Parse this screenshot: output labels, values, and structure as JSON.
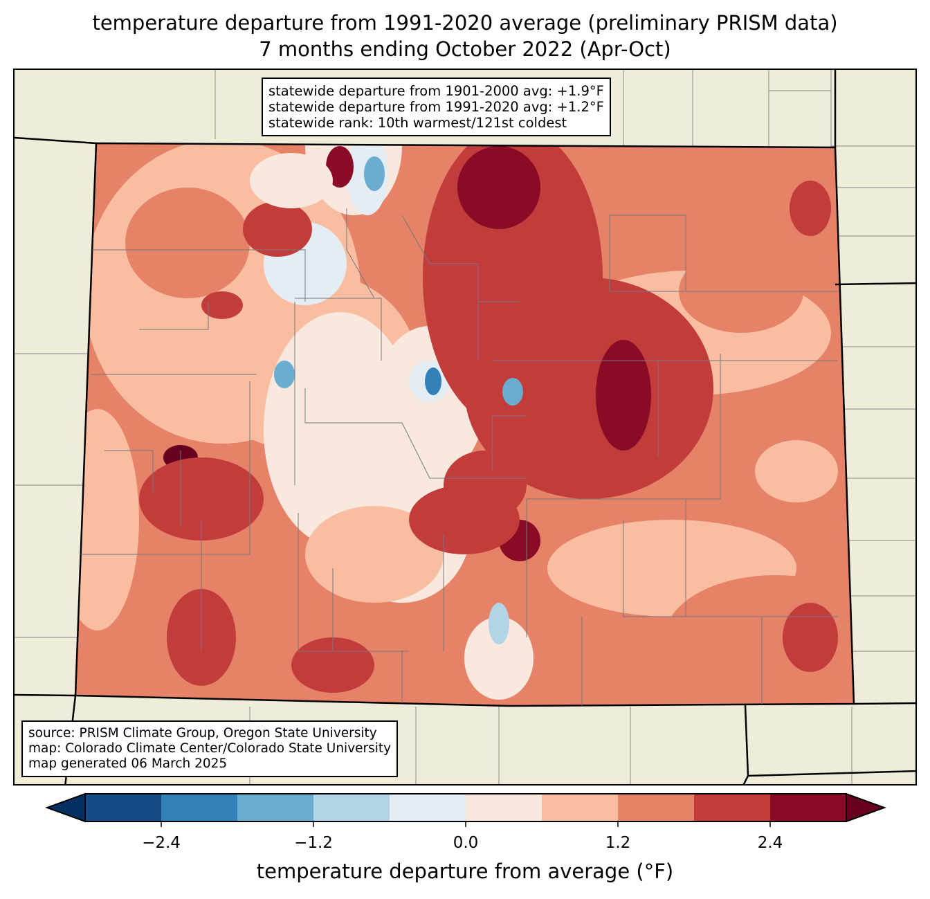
{
  "title_line1": "temperature departure from 1991-2020 average (preliminary PRISM data)",
  "title_line2": "7 months ending October 2022 (Apr-Oct)",
  "stats_box": [
    "statewide departure from 1901-2000 avg: +1.9°F",
    "statewide departure from 1991-2020 avg: +1.2°F",
    "statewide rank: 10th warmest/121st coldest"
  ],
  "source_box": [
    "source: PRISM Climate Group, Oregon State University",
    "map: Colorado Climate Center/Colorado State University",
    "map generated 06 March 2025"
  ],
  "colorbar": {
    "label": "temperature departure from average (°F)",
    "bounds": [
      -3.0,
      -2.4,
      -1.8,
      -1.2,
      -0.6,
      0.0,
      0.6,
      1.2,
      1.8,
      2.4,
      3.0
    ],
    "ticks": [
      "−2.4",
      "−1.2",
      "0.0",
      "1.2",
      "2.4"
    ],
    "colors": [
      "#164b87",
      "#3480b9",
      "#6bacd1",
      "#b1d5e7",
      "#e4edf3",
      "#f9e8dd",
      "#f9bea2",
      "#e58267",
      "#c33c3c",
      "#8a0b25"
    ],
    "under_color": "#053061",
    "over_color": "#67001f"
  },
  "land_color": "#efedda"
}
